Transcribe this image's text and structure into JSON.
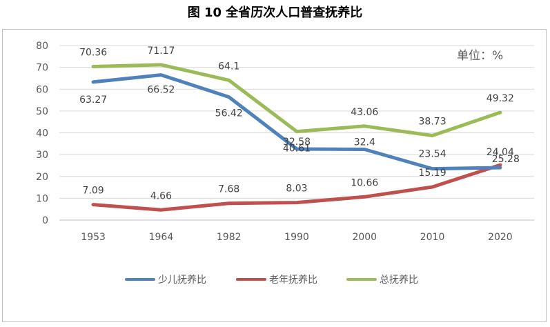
{
  "title": "图 10  全省历次人口普查抚养比",
  "unit_label": "单位：%",
  "chart_data": {
    "type": "line",
    "title": "图 10  全省历次人口普查抚养比",
    "categories": [
      "1953",
      "1964",
      "1982",
      "1990",
      "2000",
      "2010",
      "2020"
    ],
    "ylim": [
      0,
      80
    ],
    "yticks": [
      0,
      10,
      20,
      30,
      40,
      50,
      60,
      70,
      80
    ],
    "grid": true,
    "legend_position": "bottom",
    "series": [
      {
        "name": "少儿抚养比",
        "color": "#4f81bd",
        "values": [
          63.27,
          66.52,
          56.42,
          32.58,
          32.4,
          23.54,
          24.04
        ],
        "labels": [
          "63.27",
          "66.52",
          "56.42",
          "32.58",
          "32.4",
          "23.54",
          "24.04"
        ]
      },
      {
        "name": "老年抚养比",
        "color": "#c0504d",
        "values": [
          7.09,
          4.66,
          7.68,
          8.03,
          10.66,
          15.19,
          25.28
        ],
        "labels": [
          "7.09",
          "4.66",
          "7.68",
          "8.03",
          "10.66",
          "15.19",
          "25.28"
        ]
      },
      {
        "name": "总抚养比",
        "color": "#9bbb59",
        "values": [
          70.36,
          71.17,
          64.1,
          40.61,
          43.06,
          38.73,
          49.32
        ],
        "labels": [
          "70.36",
          "71.17",
          "64.1",
          "40.61",
          "43.06",
          "38.73",
          "49.32"
        ]
      }
    ]
  }
}
